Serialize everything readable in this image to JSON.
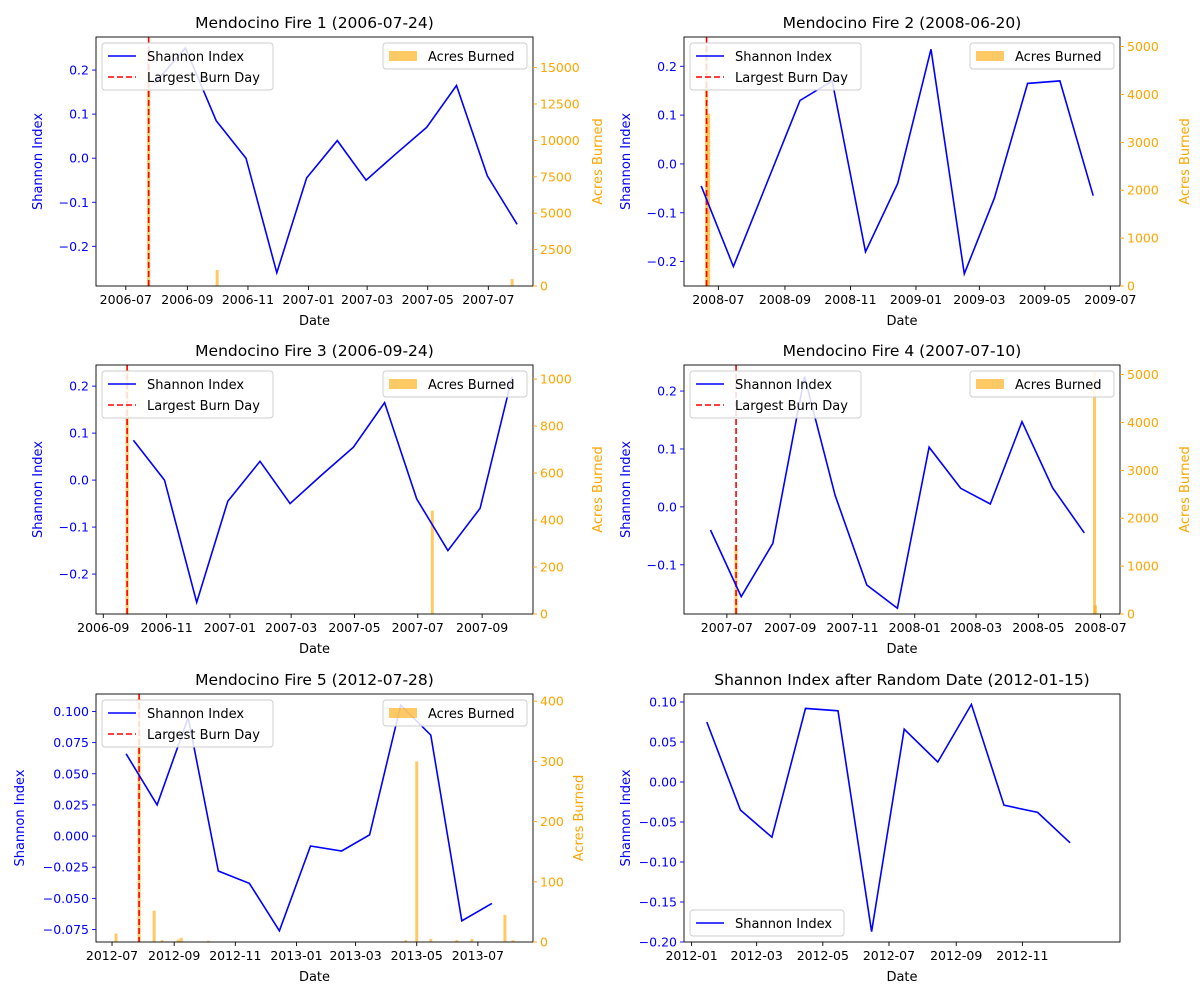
{
  "colors": {
    "line": "#0000ff",
    "burn_day": "#ff0000",
    "bars": "#ffa500",
    "text": "#000000"
  },
  "chart_data": [
    {
      "type": "line+bar",
      "title": "Mendocino Fire 1 (2006-07-24)",
      "xlabel": "Date",
      "ylabel": "Shannon Index",
      "y2label": "Acres Burned",
      "xlim": [
        "2006-06-01",
        "2007-08-15"
      ],
      "ylim": [
        -0.29,
        0.275
      ],
      "y2lim": [
        0,
        17100
      ],
      "xticks": [
        "2006-07",
        "2006-09",
        "2006-11",
        "2007-01",
        "2007-03",
        "2007-05",
        "2007-07"
      ],
      "yticks": [
        -0.2,
        -0.1,
        0.0,
        0.1,
        0.2
      ],
      "ytick_labels": [
        "−0.2",
        "−0.1",
        "0.0",
        "0.1",
        "0.2"
      ],
      "y2ticks": [
        0,
        2500,
        5000,
        7500,
        10000,
        12500,
        15000
      ],
      "y2tick_labels": [
        "0",
        "2500",
        "5000",
        "7500",
        "10000",
        "12500",
        "15000"
      ],
      "burn_day": "2006-07-24",
      "series_line": {
        "name": "Shannon Index",
        "x": [
          "2006-07-30",
          "2006-08-30",
          "2006-09-30",
          "2006-10-30",
          "2006-11-30",
          "2006-12-30",
          "2007-01-30",
          "2007-02-28",
          "2007-03-30",
          "2007-04-30",
          "2007-05-30",
          "2007-06-30",
          "2007-07-30"
        ],
        "y": [
          0.17,
          0.25,
          0.085,
          0.0,
          -0.26,
          -0.045,
          0.04,
          -0.05,
          0.01,
          0.07,
          0.165,
          -0.04,
          -0.15
        ]
      },
      "series_bars": {
        "name": "Acres Burned",
        "x": [
          "2006-07-24",
          "2006-10-01",
          "2007-07-25"
        ],
        "y": [
          16200,
          1100,
          480
        ]
      },
      "legend": [
        "Shannon Index",
        "Largest Burn Day",
        "Acres Burned"
      ],
      "legend_line_loc": "upper-left",
      "legend_bar_loc": "upper-right"
    },
    {
      "type": "line+bar",
      "title": "Mendocino Fire 2 (2008-06-20)",
      "xlabel": "Date",
      "ylabel": "Shannon Index",
      "y2label": "Acres Burned",
      "xlim": [
        "2008-05-30",
        "2009-07-10"
      ],
      "ylim": [
        -0.25,
        0.26
      ],
      "y2lim": [
        0,
        5200
      ],
      "xticks": [
        "2008-07",
        "2008-09",
        "2008-11",
        "2009-01",
        "2009-03",
        "2009-05",
        "2009-07"
      ],
      "yticks": [
        -0.2,
        -0.1,
        0.0,
        0.1,
        0.2
      ],
      "ytick_labels": [
        "−0.2",
        "−0.1",
        "0.0",
        "0.1",
        "0.2"
      ],
      "y2ticks": [
        0,
        1000,
        2000,
        3000,
        4000,
        5000
      ],
      "y2tick_labels": [
        "0",
        "1000",
        "2000",
        "3000",
        "4000",
        "5000"
      ],
      "burn_day": "2008-06-20",
      "series_line": {
        "name": "Shannon Index",
        "x": [
          "2008-06-15",
          "2008-07-15",
          "2008-08-15",
          "2008-09-15",
          "2008-10-15",
          "2008-11-15",
          "2008-12-15",
          "2009-01-15",
          "2009-02-15",
          "2009-03-15",
          "2009-04-15",
          "2009-05-15",
          "2009-06-15"
        ],
        "y": [
          -0.045,
          -0.21,
          -0.04,
          0.13,
          0.17,
          -0.18,
          -0.04,
          0.235,
          -0.225,
          -0.07,
          0.165,
          0.17,
          -0.065
        ]
      },
      "series_bars": {
        "name": "Acres Burned",
        "x": [
          "2008-06-20",
          "2008-06-22"
        ],
        "y": [
          5050,
          3600
        ]
      },
      "legend": [
        "Shannon Index",
        "Largest Burn Day",
        "Acres Burned"
      ],
      "legend_line_loc": "upper-left",
      "legend_bar_loc": "upper-right"
    },
    {
      "type": "line+bar",
      "title": "Mendocino Fire 3 (2006-09-24)",
      "xlabel": "Date",
      "ylabel": "Shannon Index",
      "y2label": "Acres Burned",
      "xlim": [
        "2006-08-25",
        "2007-10-20"
      ],
      "ylim": [
        -0.285,
        0.245
      ],
      "y2lim": [
        0,
        1060
      ],
      "xticks": [
        "2006-09",
        "2006-11",
        "2007-01",
        "2007-03",
        "2007-05",
        "2007-07",
        "2007-09"
      ],
      "yticks": [
        -0.2,
        -0.1,
        0.0,
        0.1,
        0.2
      ],
      "ytick_labels": [
        "−0.2",
        "−0.1",
        "0.0",
        "0.1",
        "0.2"
      ],
      "y2ticks": [
        0,
        200,
        400,
        600,
        800,
        1000
      ],
      "y2tick_labels": [
        "0",
        "200",
        "400",
        "600",
        "800",
        "1000"
      ],
      "burn_day": "2006-09-24",
      "series_line": {
        "name": "Shannon Index",
        "x": [
          "2006-09-30",
          "2006-10-30",
          "2006-11-30",
          "2006-12-30",
          "2007-01-30",
          "2007-02-28",
          "2007-03-30",
          "2007-04-30",
          "2007-05-30",
          "2007-06-30",
          "2007-07-30",
          "2007-08-30",
          "2007-09-30"
        ],
        "y": [
          0.085,
          0.0,
          -0.26,
          -0.045,
          0.04,
          -0.05,
          0.01,
          0.07,
          0.165,
          -0.04,
          -0.15,
          -0.06,
          0.22
        ]
      },
      "series_bars": {
        "name": "Acres Burned",
        "x": [
          "2006-09-24",
          "2007-07-15"
        ],
        "y": [
          1040,
          440
        ]
      },
      "legend": [
        "Shannon Index",
        "Largest Burn Day",
        "Acres Burned"
      ],
      "legend_line_loc": "upper-left",
      "legend_bar_loc": "upper-right"
    },
    {
      "type": "line+bar",
      "title": "Mendocino Fire 4 (2007-07-10)",
      "xlabel": "Date",
      "ylabel": "Shannon Index",
      "y2label": "Acres Burned",
      "xlim": [
        "2007-05-20",
        "2008-07-20"
      ],
      "ylim": [
        -0.185,
        0.245
      ],
      "y2lim": [
        0,
        5200
      ],
      "xticks": [
        "2007-07",
        "2007-09",
        "2007-11",
        "2008-01",
        "2008-03",
        "2008-05",
        "2008-07"
      ],
      "yticks": [
        -0.1,
        0.0,
        0.1,
        0.2
      ],
      "ytick_labels": [
        "−0.1",
        "0.0",
        "0.1",
        "0.2"
      ],
      "y2ticks": [
        0,
        1000,
        2000,
        3000,
        4000,
        5000
      ],
      "y2tick_labels": [
        "0",
        "1000",
        "2000",
        "3000",
        "4000",
        "5000"
      ],
      "burn_day": "2007-07-10",
      "series_line": {
        "name": "Shannon Index",
        "x": [
          "2007-06-15",
          "2007-07-15",
          "2007-08-15",
          "2007-09-15",
          "2007-10-15",
          "2007-11-15",
          "2007-12-15",
          "2008-01-15",
          "2008-02-15",
          "2008-03-15",
          "2008-04-15",
          "2008-05-15",
          "2008-06-15"
        ],
        "y": [
          -0.04,
          -0.155,
          -0.063,
          0.225,
          0.02,
          -0.135,
          -0.175,
          0.103,
          0.032,
          0.005,
          0.147,
          0.033,
          -0.045
        ]
      },
      "series_bars": {
        "name": "Acres Burned",
        "x": [
          "2007-07-10",
          "2008-06-25",
          "2008-06-26"
        ],
        "y": [
          1450,
          5050,
          180
        ]
      },
      "legend": [
        "Shannon Index",
        "Largest Burn Day",
        "Acres Burned"
      ],
      "legend_line_loc": "upper-left",
      "legend_bar_loc": "upper-right"
    },
    {
      "type": "line+bar",
      "title": "Mendocino Fire 5 (2012-07-28)",
      "xlabel": "Date",
      "ylabel": "Shannon Index",
      "y2label": "Acres Burned",
      "xlim": [
        "2012-06-15",
        "2013-08-25"
      ],
      "ylim": [
        -0.085,
        0.114
      ],
      "y2lim": [
        0,
        412
      ],
      "xticks": [
        "2012-07",
        "2012-09",
        "2012-11",
        "2013-01",
        "2013-03",
        "2013-05",
        "2013-07"
      ],
      "yticks": [
        -0.075,
        -0.05,
        -0.025,
        0.0,
        0.025,
        0.05,
        0.075,
        0.1
      ],
      "ytick_labels": [
        "−0.075",
        "−0.050",
        "−0.025",
        "0.000",
        "0.025",
        "0.050",
        "0.075",
        "0.100"
      ],
      "y2ticks": [
        0,
        100,
        200,
        300,
        400
      ],
      "y2tick_labels": [
        "0",
        "100",
        "200",
        "300",
        "400"
      ],
      "burn_day": "2012-07-28",
      "series_line": {
        "name": "Shannon Index",
        "x": [
          "2012-07-15",
          "2012-08-15",
          "2012-09-15",
          "2012-10-15",
          "2012-11-15",
          "2012-12-15",
          "2013-01-15",
          "2013-02-15",
          "2013-03-15",
          "2013-04-15",
          "2013-05-15",
          "2013-06-15",
          "2013-07-15"
        ],
        "y": [
          0.066,
          0.025,
          0.095,
          -0.028,
          -0.038,
          -0.076,
          -0.008,
          -0.012,
          0.001,
          0.105,
          0.081,
          -0.068,
          -0.054
        ]
      },
      "series_bars": {
        "name": "Acres Burned",
        "x": [
          "2012-07-05",
          "2012-07-28",
          "2012-08-12",
          "2012-08-20",
          "2012-09-05",
          "2012-09-08",
          "2012-10-05",
          "2013-04-20",
          "2013-05-01",
          "2013-05-15",
          "2013-06-10",
          "2013-06-25",
          "2013-07-28",
          "2013-08-05"
        ],
        "y": [
          14,
          405,
          52,
          3,
          4,
          7,
          2,
          3,
          300,
          5,
          3,
          5,
          45,
          3
        ]
      },
      "legend": [
        "Shannon Index",
        "Largest Burn Day",
        "Acres Burned"
      ],
      "legend_line_loc": "upper-left",
      "legend_bar_loc": "upper-right"
    },
    {
      "type": "line",
      "title": "Shannon Index after Random Date (2012-01-15)",
      "xlabel": "Date",
      "ylabel": "Shannon Index",
      "xlim": [
        "2011-12-25",
        "2013-01-30"
      ],
      "ylim": [
        -0.2,
        0.11
      ],
      "xticks": [
        "2012-01",
        "2012-03",
        "2012-05",
        "2012-07",
        "2012-09",
        "2012-11"
      ],
      "yticks": [
        -0.2,
        -0.15,
        -0.1,
        -0.05,
        0.0,
        0.05,
        0.1
      ],
      "ytick_labels": [
        "−0.20",
        "−0.15",
        "−0.10",
        "−0.05",
        "0.00",
        "0.05",
        "0.10"
      ],
      "series_line": {
        "name": "Shannon Index",
        "x": [
          "2012-01-15",
          "2012-02-15",
          "2012-03-15",
          "2012-04-15",
          "2012-05-15",
          "2012-06-15",
          "2012-07-15",
          "2012-08-15",
          "2012-09-15",
          "2012-10-15",
          "2012-11-15",
          "2012-12-15"
        ],
        "y": [
          0.075,
          -0.035,
          -0.069,
          0.092,
          0.089,
          -0.187,
          0.066,
          0.025,
          0.097,
          -0.029,
          -0.038,
          -0.076
        ]
      },
      "legend": [
        "Shannon Index"
      ],
      "legend_line_loc": "lower-left"
    }
  ]
}
